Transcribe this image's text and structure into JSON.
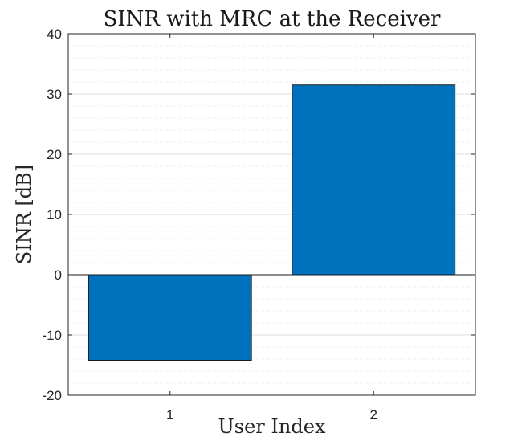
{
  "chart_data": {
    "type": "bar",
    "title": "SINR with MRC at the Receiver",
    "xlabel": "User Index",
    "ylabel": "SINR [dB]",
    "categories": [
      "1",
      "2"
    ],
    "values": [
      -14.2,
      31.5
    ],
    "ylim": [
      -20,
      40
    ],
    "yticks": [
      -20,
      -10,
      0,
      10,
      20,
      30,
      40
    ],
    "grid": true,
    "minor_grid": true,
    "bar_color": "#0072BD"
  }
}
